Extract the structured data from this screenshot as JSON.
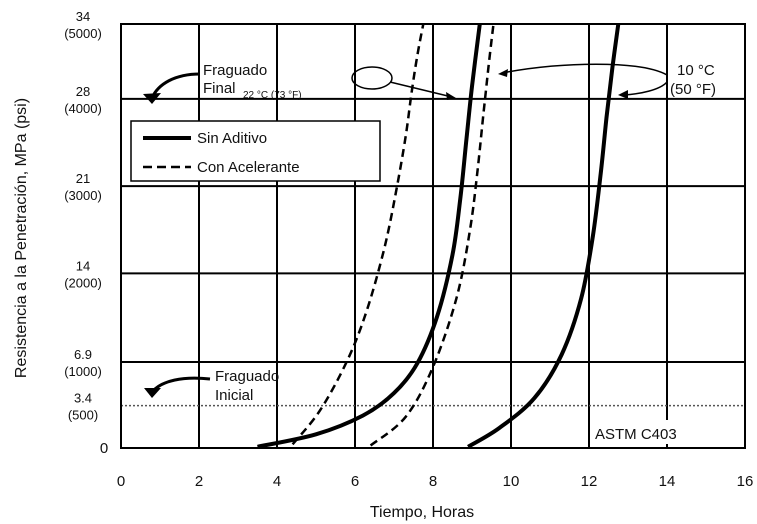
{
  "chart_data": {
    "type": "line",
    "title": "",
    "xlabel": "Tiempo, Horas",
    "ylabel": "Resistencia a la Penetración, MPa (psi)",
    "xlim": [
      0,
      16
    ],
    "ylim": [
      0,
      34
    ],
    "x_ticks": [
      0,
      2,
      4,
      6,
      8,
      10,
      12,
      14,
      16
    ],
    "y_ticks": [
      {
        "value": 0,
        "label": "0",
        "sublabel": ""
      },
      {
        "value": 3.4,
        "label": "3.4",
        "sublabel": "(500)"
      },
      {
        "value": 6.9,
        "label": "6.9",
        "sublabel": "(1000)"
      },
      {
        "value": 14,
        "label": "14",
        "sublabel": "(2000)"
      },
      {
        "value": 21,
        "label": "21",
        "sublabel": "(3000)"
      },
      {
        "value": 28,
        "label": "28",
        "sublabel": "(4000)"
      },
      {
        "value": 34,
        "label": "34",
        "sublabel": "(5000)"
      }
    ],
    "grid": true,
    "legend_position": "top-left",
    "series": [
      {
        "name": "Sin Aditivo",
        "style": "solid",
        "x": [
          3.5,
          5.0,
          6.2,
          7.0,
          7.6,
          8.1,
          8.5,
          8.7,
          8.85,
          9.0,
          9.2
        ],
        "y": [
          0.1,
          1.1,
          2.6,
          4.4,
          6.8,
          10.5,
          15.5,
          20.0,
          24.5,
          29.0,
          34.0
        ]
      },
      {
        "name": "Con Acelerante",
        "style": "dashed",
        "x": [
          4.4,
          5.1,
          5.8,
          6.3,
          6.75,
          7.05,
          7.3,
          7.45,
          7.6,
          7.75
        ],
        "y": [
          0.3,
          3.0,
          7.0,
          11.0,
          16.0,
          20.5,
          25.0,
          28.5,
          31.5,
          34.0
        ]
      },
      {
        "name": "Sin Aditivo",
        "style": "solid",
        "x": [
          8.9,
          9.7,
          10.6,
          11.3,
          11.8,
          12.1,
          12.3,
          12.45,
          12.6,
          12.75
        ],
        "y": [
          0.1,
          1.6,
          4.0,
          7.5,
          12.0,
          17.0,
          22.0,
          26.5,
          30.5,
          34.0
        ]
      },
      {
        "name": "Con Acelerante",
        "style": "dashed",
        "x": [
          6.4,
          7.3,
          8.0,
          8.6,
          8.95,
          9.15,
          9.3,
          9.42,
          9.55
        ],
        "y": [
          0.2,
          2.5,
          6.5,
          12.0,
          17.5,
          22.5,
          27.0,
          30.5,
          34.0
        ]
      }
    ],
    "reference_line": {
      "y": 3.4,
      "style": "dotted"
    },
    "legend": {
      "solid_label": "Sin Aditivo",
      "dashed_label": "Con Acelerante"
    },
    "annotations": {
      "final_set_line1": "Fraguado",
      "final_set_line2": "Final",
      "final_set_temp": "22 °C (73 °F)",
      "initial_set_line1": "Fraguado",
      "initial_set_line2": "Inicial",
      "temp_10_line1": "10 °C",
      "temp_10_line2": "(50 °F)",
      "standard": "ASTM C403"
    }
  }
}
